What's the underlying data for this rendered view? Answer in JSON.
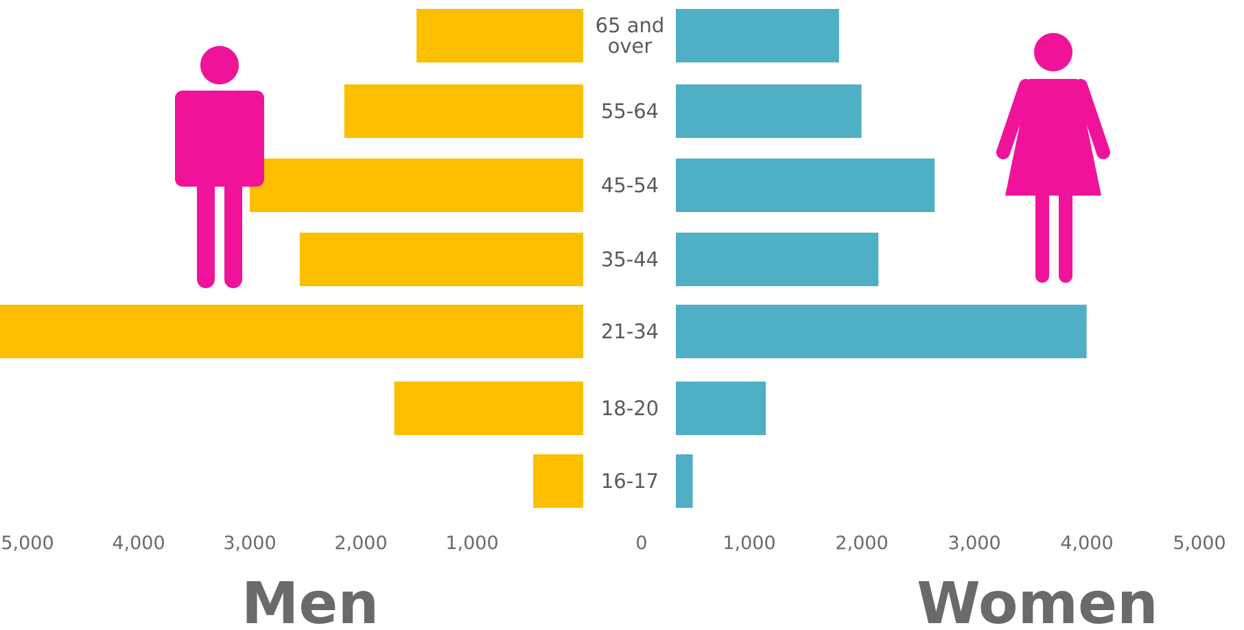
{
  "chart_data": {
    "type": "bar",
    "orientation": "horizontal-diverging",
    "categories": [
      "65 and over",
      "55-64",
      "45-54",
      "35-44",
      "21-34",
      "18-20",
      "16-17"
    ],
    "category_lines": [
      [
        "65 and",
        "over"
      ],
      [
        "55-64"
      ],
      [
        "45-54"
      ],
      [
        "35-44"
      ],
      [
        "21-34"
      ],
      [
        "18-20"
      ],
      [
        "16-17"
      ]
    ],
    "series": [
      {
        "name": "Men",
        "color": "#FBBF00",
        "values": [
          1500,
          2150,
          3000,
          2550,
          5350,
          1700,
          450
        ]
      },
      {
        "name": "Women",
        "color": "#4FAFC4",
        "values": [
          1450,
          1650,
          2300,
          1800,
          3650,
          800,
          150
        ]
      }
    ],
    "xlim": [
      0,
      5000
    ],
    "x_ticks_left": [
      "5,000",
      "4,000",
      "3,000",
      "2,000",
      "1,000",
      "0"
    ],
    "x_ticks_right": [
      "1,000",
      "2,000",
      "3,000",
      "4,000",
      "5,000"
    ],
    "titles": {
      "left": "Men",
      "right": "Women"
    },
    "icon_color": "#F0139A",
    "icons": {
      "left": "man-icon",
      "right": "woman-icon"
    },
    "grid": false,
    "legend": "none"
  }
}
